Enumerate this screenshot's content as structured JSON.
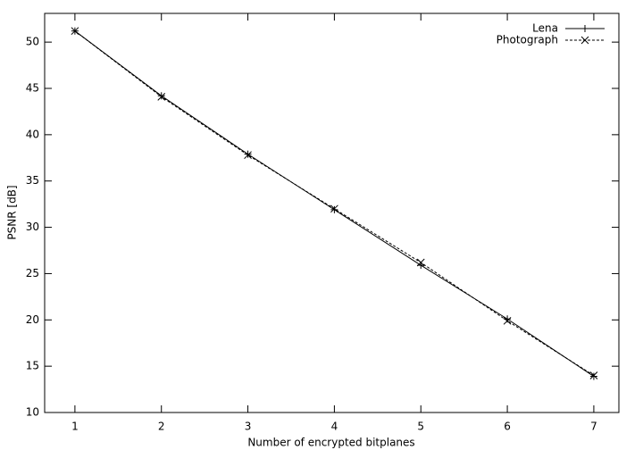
{
  "chart_data": {
    "type": "line",
    "x_label": "Number of encrypted bitplanes",
    "y_label": "PSNR [dB]",
    "x": [
      1,
      2,
      3,
      4,
      5,
      6,
      7
    ],
    "series": [
      {
        "name": "Lena",
        "color": "#000000",
        "marker": "plus",
        "dash": "solid",
        "values": [
          51.2,
          44.2,
          37.9,
          31.9,
          25.9,
          20.1,
          13.9
        ]
      },
      {
        "name": "Photograph",
        "color": "#000000",
        "marker": "cross",
        "dash": "dashed",
        "values": [
          51.2,
          44.1,
          37.8,
          32.0,
          26.2,
          19.9,
          14.0
        ]
      }
    ],
    "xlim": [
      0.65,
      7.29
    ],
    "xticks": [
      1,
      2,
      3,
      4,
      5,
      6,
      7
    ],
    "ylim": [
      10,
      53.1
    ],
    "yticks": [
      10,
      15,
      20,
      25,
      30,
      35,
      40,
      45,
      50
    ],
    "legend": "top-right"
  }
}
